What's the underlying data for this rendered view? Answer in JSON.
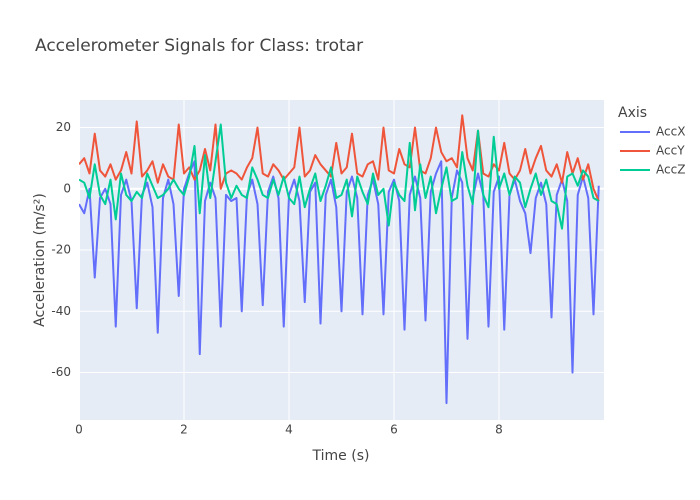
{
  "chart_data": {
    "type": "line",
    "title": "Accelerometer Signals for Class: trotar",
    "x_label": "Time (s)",
    "y_label": "Acceleration (m/s²)",
    "legend_title": "Axis",
    "legend_position": "right",
    "grid": true,
    "x": [
      0,
      0.1,
      0.2,
      0.3,
      0.4,
      0.5,
      0.6,
      0.7,
      0.8,
      0.9,
      1,
      1.1,
      1.2,
      1.3,
      1.4,
      1.5,
      1.6,
      1.7,
      1.8,
      1.9,
      2,
      2.1,
      2.2,
      2.3,
      2.4,
      2.5,
      2.6,
      2.7,
      2.8,
      2.9,
      3,
      3.1,
      3.2,
      3.3,
      3.4,
      3.5,
      3.6,
      3.7,
      3.8,
      3.9,
      4,
      4.1,
      4.2,
      4.3,
      4.4,
      4.5,
      4.6,
      4.7,
      4.8,
      4.9,
      5,
      5.1,
      5.2,
      5.3,
      5.4,
      5.5,
      5.6,
      5.7,
      5.8,
      5.9,
      6,
      6.1,
      6.2,
      6.3,
      6.4,
      6.5,
      6.6,
      6.7,
      6.8,
      6.9,
      7,
      7.1,
      7.2,
      7.3,
      7.4,
      7.5,
      7.6,
      7.7,
      7.8,
      7.9,
      8,
      8.1,
      8.2,
      8.3,
      8.4,
      8.5,
      8.6,
      8.7,
      8.8,
      8.9,
      9,
      9.1,
      9.2,
      9.3,
      9.4,
      9.5,
      9.6,
      9.7,
      9.8,
      9.9
    ],
    "series": [
      {
        "name": "AccX",
        "color": "#636efa",
        "values": [
          -5,
          -8,
          0,
          -29,
          -3,
          0,
          -5,
          -45,
          -2,
          3,
          -4,
          -39,
          -2,
          2,
          -6,
          -47,
          -3,
          3,
          -5,
          -35,
          0,
          5,
          9,
          -54,
          -4,
          2,
          -3,
          -45,
          -2,
          -4,
          -3,
          -40,
          -2,
          3,
          -5,
          -38,
          -1,
          4,
          -3,
          -45,
          -2,
          3,
          -4,
          -37,
          -1,
          2,
          -44,
          -2,
          3,
          -6,
          -40,
          -1,
          4,
          -3,
          -41,
          -2,
          3,
          -5,
          -41,
          -1,
          3,
          -4,
          -46,
          -2,
          4,
          -3,
          -43,
          -1,
          5,
          9,
          -70,
          -3,
          6,
          2,
          -49,
          -3,
          5,
          -2,
          -45,
          -1,
          4,
          -46,
          -2,
          3,
          -4,
          -8,
          -21,
          -3,
          2,
          -5,
          -42,
          -2,
          3,
          -4,
          -60,
          -2,
          4,
          -3,
          -41,
          1
        ]
      },
      {
        "name": "AccY",
        "color": "#EF553B",
        "values": [
          8,
          10,
          5,
          18,
          6,
          4,
          8,
          3,
          6,
          12,
          5,
          22,
          4,
          6,
          9,
          2,
          8,
          4,
          3,
          21,
          5,
          7,
          3,
          6,
          13,
          6,
          21,
          0,
          5,
          6,
          5,
          3,
          7,
          10,
          20,
          5,
          4,
          8,
          6,
          3,
          5,
          7,
          20,
          4,
          6,
          11,
          8,
          6,
          4,
          15,
          5,
          7,
          18,
          5,
          4,
          8,
          9,
          3,
          20,
          6,
          5,
          13,
          8,
          7,
          20,
          6,
          5,
          10,
          20,
          12,
          9,
          10,
          7,
          24,
          10,
          6,
          19,
          5,
          4,
          8,
          6,
          15,
          5,
          3,
          6,
          13,
          5,
          10,
          14,
          6,
          4,
          8,
          2,
          12,
          5,
          10,
          3,
          8,
          0,
          -4
        ]
      },
      {
        "name": "AccZ",
        "color": "#00cc96",
        "values": [
          3,
          2,
          -3,
          8,
          -2,
          -5,
          3,
          -10,
          5,
          -2,
          -4,
          -1,
          -3,
          5,
          1,
          -3,
          -2,
          0,
          3,
          0,
          -2,
          4,
          14,
          -8,
          11,
          -3,
          9,
          21,
          2,
          -3,
          1,
          -2,
          -3,
          7,
          3,
          -2,
          -3,
          3,
          -2,
          4,
          -3,
          -5,
          4,
          -6,
          0,
          5,
          -4,
          1,
          7,
          -3,
          -2,
          3,
          -9,
          4,
          -1,
          -5,
          5,
          -2,
          0,
          -12,
          2,
          -2,
          -4,
          15,
          -7,
          8,
          -3,
          4,
          -8,
          0,
          7,
          -4,
          -3,
          12,
          1,
          -5,
          19,
          -2,
          -6,
          17,
          0,
          5,
          -2,
          4,
          2,
          -6,
          0,
          5,
          -2,
          3,
          -4,
          -5,
          -13,
          4,
          5,
          1,
          6,
          4,
          -3,
          -4
        ]
      }
    ],
    "xlim": [
      0,
      10
    ],
    "xticks": [
      0,
      2,
      4,
      6,
      8
    ],
    "ylim": [
      -75.5,
      29
    ],
    "yticks": [
      -60,
      -40,
      -20,
      0,
      20
    ]
  }
}
